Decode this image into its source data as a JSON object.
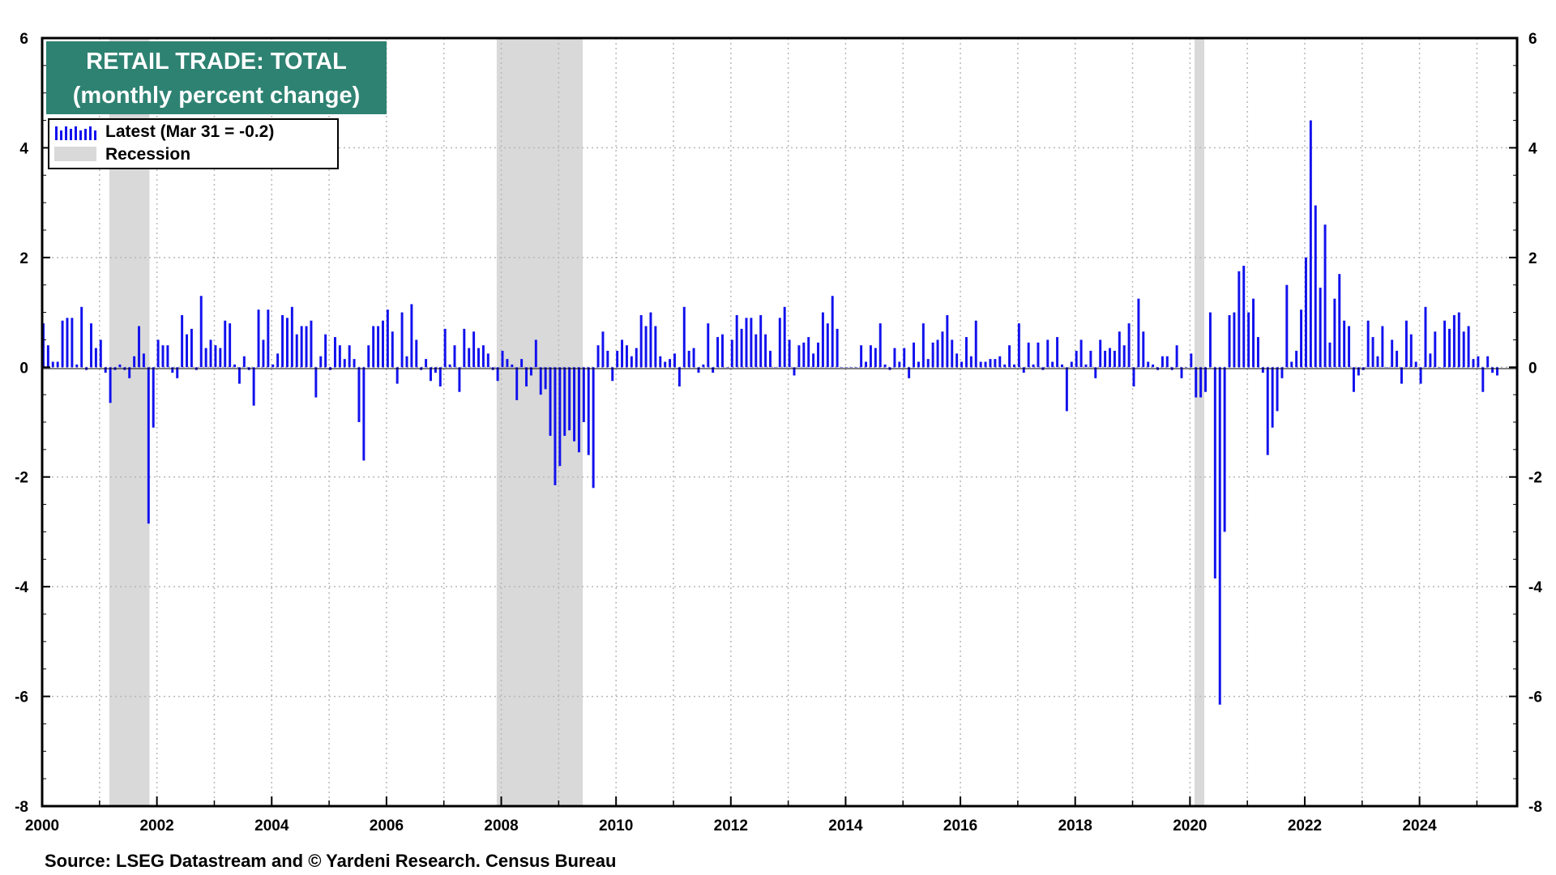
{
  "chart_data": {
    "type": "bar",
    "title": "RETAIL TRADE: TOTAL",
    "subtitle": "(monthly percent change)",
    "legend": {
      "placement": "top-left",
      "entries": [
        {
          "label": "Latest (Mar 31 = -0.2)",
          "kind": "bar",
          "color": "#1111ee"
        },
        {
          "label": "Recession",
          "kind": "shade",
          "color": "#d9d9d9"
        }
      ]
    },
    "source": "Source: LSEG Datastream and © Yardeni Research. Census Bureau",
    "x_axis": {
      "start": 2000,
      "end": 2025.7,
      "tick_values": [
        2000,
        2002,
        2004,
        2006,
        2008,
        2010,
        2012,
        2014,
        2016,
        2018,
        2020,
        2022,
        2024
      ],
      "tick_labels": [
        "2000",
        "2002",
        "2004",
        "2006",
        "2008",
        "2010",
        "2012",
        "2014",
        "2016",
        "2018",
        "2020",
        "2022",
        "2024"
      ]
    },
    "y_axis": {
      "ylim": [
        -8,
        6
      ],
      "ticks": [
        6,
        4,
        2,
        0,
        -2,
        -4,
        -6,
        -8
      ],
      "tick_labels": [
        "6",
        "4",
        "2",
        "0",
        "-2",
        "-4",
        "-6",
        "-8"
      ],
      "right_axis_mirror": true
    },
    "grid": true,
    "recessions": [
      [
        2001.17,
        2001.87
      ],
      [
        2007.92,
        2009.42
      ],
      [
        2020.08,
        2020.25
      ]
    ],
    "colors": {
      "bar": "#1111ee",
      "recession": "#d9d9d9",
      "title_bg": "#2e8272",
      "title_text": "#ffffff",
      "grid": "#b8b8b8"
    },
    "series": [
      {
        "start": "2000-01",
        "frequency": "monthly",
        "values": [
          0.8,
          0.4,
          0.1,
          0.1,
          0.85,
          0.9,
          0.9,
          0.05,
          1.1,
          -0.05,
          0.8,
          0.35,
          0.5,
          -0.1,
          -0.65,
          -0.05,
          0.05,
          -0.05,
          -0.2,
          0.2,
          0.75,
          0.25,
          -2.85,
          -1.1,
          0.5,
          0.4,
          0.4,
          -0.1,
          -0.2,
          0.95,
          0.6,
          0.7,
          -0.05,
          1.3,
          0.35,
          0.5,
          0.4,
          0.35,
          0.85,
          0.8,
          0.05,
          -0.3,
          0.2,
          -0.05,
          -0.7,
          1.05,
          0.5,
          1.05,
          0.05,
          0.25,
          0.95,
          0.9,
          1.1,
          0.6,
          0.75,
          0.75,
          0.85,
          -0.55,
          0.2,
          0.6,
          -0.05,
          0.55,
          0.4,
          0.15,
          0.4,
          0.15,
          -1.0,
          -1.7,
          0.4,
          0.75,
          0.75,
          0.85,
          1.05,
          0.65,
          -0.3,
          1.0,
          0.2,
          1.15,
          0.5,
          -0.05,
          0.15,
          -0.25,
          -0.1,
          -0.35,
          0.7,
          0.05,
          0.4,
          -0.45,
          0.7,
          0.35,
          0.65,
          0.35,
          0.4,
          0.25,
          -0.05,
          -0.25,
          0.3,
          0.15,
          0.05,
          -0.6,
          0.15,
          -0.35,
          -0.15,
          0.5,
          -0.5,
          -0.4,
          -1.25,
          -2.15,
          -1.8,
          -1.25,
          -1.15,
          -1.35,
          -1.55,
          -1.0,
          -1.6,
          -2.2,
          0.4,
          0.65,
          0.3,
          -0.25,
          0.3,
          0.5,
          0.4,
          0.2,
          0.35,
          0.95,
          0.75,
          1.0,
          0.75,
          0.2,
          0.1,
          0.15,
          0.25,
          -0.35,
          1.1,
          0.3,
          0.35,
          -0.1,
          0.05,
          0.8,
          -0.1,
          0.55,
          0.6,
          0.0,
          0.5,
          0.95,
          0.7,
          0.9,
          0.9,
          0.6,
          0.95,
          0.6,
          0.3,
          0.0,
          0.9,
          1.1,
          0.5,
          -0.15,
          0.4,
          0.45,
          0.55,
          0.25,
          0.45,
          1.0,
          0.8,
          1.3,
          0.7,
          0.0,
          0.0,
          0.0,
          0.0,
          0.4,
          0.1,
          0.4,
          0.35,
          0.8,
          0.05,
          -0.05,
          0.35,
          0.1,
          0.35,
          -0.2,
          0.45,
          0.1,
          0.8,
          0.15,
          0.45,
          0.5,
          0.65,
          0.95,
          0.5,
          0.25,
          0.1,
          0.55,
          0.2,
          0.85,
          0.1,
          0.1,
          0.15,
          0.15,
          0.2,
          0.05,
          0.4,
          0.05,
          0.8,
          -0.1,
          0.45,
          0.05,
          0.45,
          -0.05,
          0.5,
          0.1,
          0.55,
          0.05,
          -0.8,
          0.1,
          0.3,
          0.5,
          0.05,
          0.3,
          -0.2,
          0.5,
          0.3,
          0.35,
          0.3,
          0.65,
          0.4,
          0.8,
          -0.35,
          1.25,
          0.65,
          0.1,
          0.05,
          -0.05,
          0.2,
          0.2,
          -0.05,
          0.4,
          -0.2,
          0.0,
          0.25,
          -0.55,
          -0.55,
          -0.45,
          1.0,
          -3.85,
          -6.15,
          -3.0,
          0.95,
          1.0,
          1.75,
          1.85,
          1.0,
          1.25,
          0.55,
          -0.1,
          -1.6,
          -1.1,
          -0.8,
          -0.2,
          1.5,
          0.1,
          0.3,
          1.05,
          2.0,
          4.5,
          2.95,
          1.45,
          2.6,
          0.45,
          1.25,
          1.7,
          0.85,
          0.75,
          -0.45,
          -0.15,
          -0.05,
          0.85,
          0.55,
          0.2,
          0.75,
          0.0,
          0.5,
          0.3,
          -0.3,
          0.85,
          0.6,
          0.1,
          -0.3,
          1.1,
          0.25,
          0.65,
          0.0,
          0.85,
          0.7,
          0.95,
          1.0,
          0.65,
          0.75,
          0.15,
          0.2,
          -0.45,
          0.2,
          -0.1,
          -0.15
        ]
      }
    ]
  }
}
